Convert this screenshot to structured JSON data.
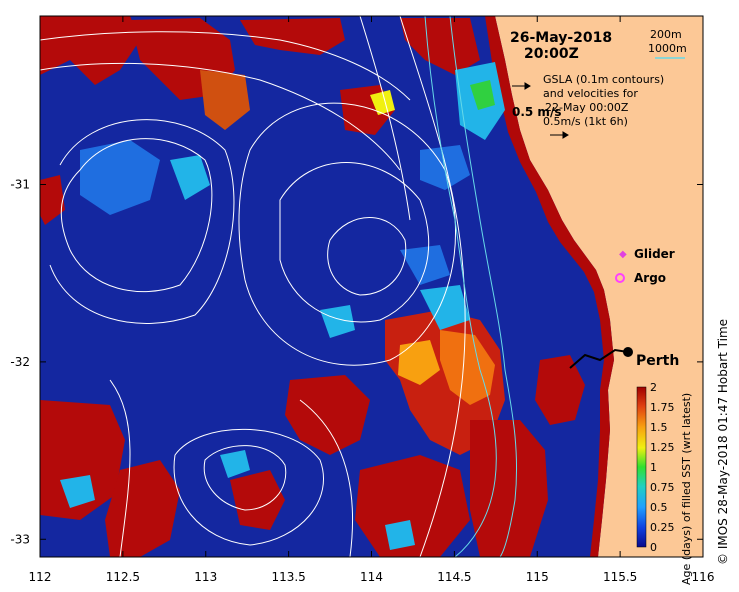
{
  "map": {
    "date": "26-May-2018",
    "time": "20:00Z",
    "lon_ticks": [
      "112",
      "112.5",
      "113",
      "113.5",
      "114",
      "114.5",
      "115",
      "115.5",
      "116"
    ],
    "lat_ticks": [
      "-31",
      "-32",
      "-33"
    ],
    "lon_range": [
      112,
      116
    ],
    "lat_range": [
      -33.1,
      -30.05
    ],
    "legend": {
      "depth_200": "200m",
      "depth_1000": "1000m",
      "gsla_line1": "GSLA (0.1m contours)",
      "gsla_line2": "and velocities for",
      "gsla_line3": "22-May 00:00Z",
      "scale_line": "0.5m/s (1kt 6h)",
      "vel_label": "0.5 m/s",
      "glider": "Glider",
      "argo": "Argo"
    },
    "city": "Perth",
    "credit": "© IMOS 28-May-2018 01:47 Hobart Time",
    "colorbar": {
      "title": "Age (days) of filled SST (wrt latest)",
      "ticks": [
        "2",
        "1.75",
        "1.5",
        "1.25",
        "1",
        "0.75",
        "0.5",
        "0.25",
        "0"
      ],
      "range": [
        0,
        2
      ]
    },
    "colors": {
      "land": "#fcc896",
      "ocean_base": "#1427a0",
      "contour_white": "#ffffff",
      "isobath_cyan": "#66d9e8",
      "glider": "#e040e0",
      "argo": "#ff40ff"
    }
  }
}
